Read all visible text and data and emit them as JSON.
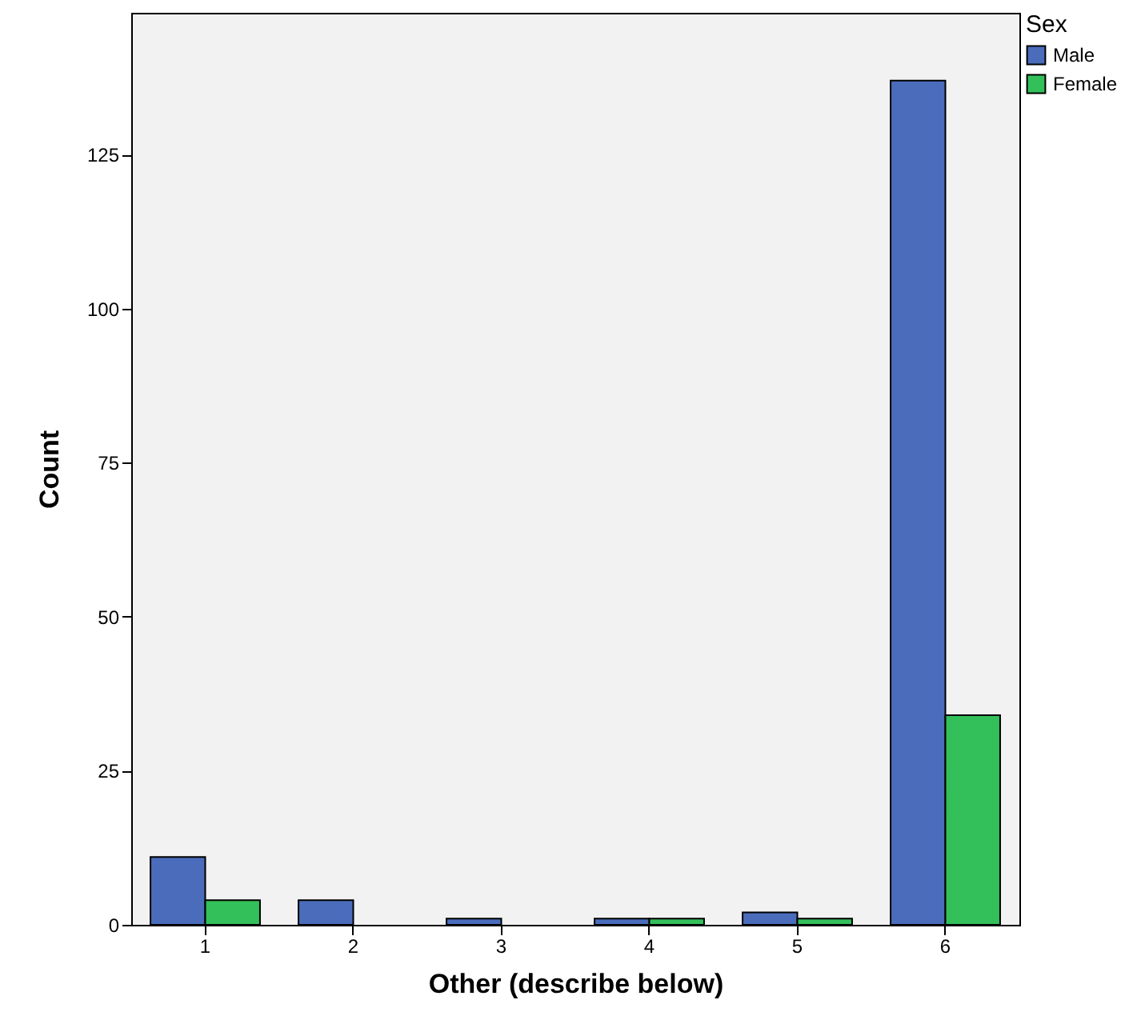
{
  "chart_data": {
    "type": "bar",
    "xlabel": "Other (describe below)",
    "ylabel": "Count",
    "legend_title": "Sex",
    "legend": "top right",
    "categories": [
      "1",
      "2",
      "3",
      "4",
      "5",
      "6"
    ],
    "series": [
      {
        "name": "Male",
        "color": "#4a6cbb",
        "values": [
          11,
          4,
          1,
          1,
          2,
          137
        ]
      },
      {
        "name": "Female",
        "color": "#33bf5a",
        "values": [
          4,
          null,
          null,
          1,
          1,
          34
        ]
      }
    ],
    "ylim": [
      0,
      148
    ],
    "yticks": [
      0,
      25,
      50,
      75,
      100,
      125
    ],
    "grid": false
  }
}
